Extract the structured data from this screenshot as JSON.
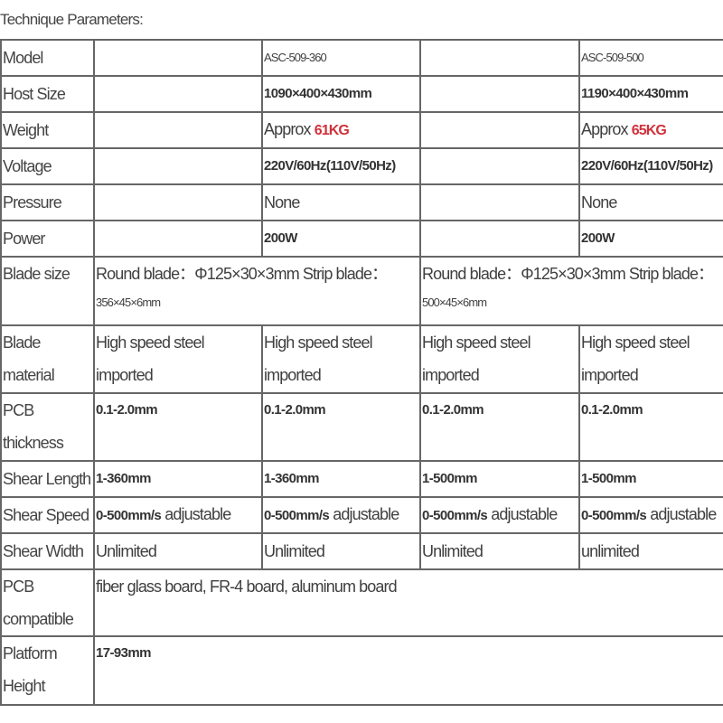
{
  "title": "Technique Parameters:",
  "rows": {
    "model": {
      "label": "Model",
      "a": "ASC-509-360",
      "b": "ASC-509-500"
    },
    "host_size": {
      "label": "Host Size",
      "a": "1090×400×430mm",
      "b": "1190×400×430mm"
    },
    "weight": {
      "label": "Weight",
      "prefix": "Approx ",
      "a": "61KG",
      "b": "65KG",
      "highlight_color": "#d0313a"
    },
    "voltage": {
      "label": "Voltage",
      "a": "220V/60Hz(110V/50Hz)",
      "b": "220V/60Hz(110V/50Hz)"
    },
    "pressure": {
      "label": "Pressure",
      "a": "None",
      "b": "None"
    },
    "power": {
      "label": "Power",
      "a": "200W",
      "b": "200W"
    },
    "blade_size": {
      "label": "Blade size",
      "a_line1": "Round blade：Φ125×30×3mm Strip blade：",
      "a_line2": "356×45×6mm",
      "b_line1": "Round blade：Φ125×30×3mm Strip blade：",
      "b_line2": "500×45×6mm"
    },
    "blade_material": {
      "label_1": "Blade",
      "label_2": "material",
      "values": [
        "High speed steel imported",
        "High speed steel imported",
        "High speed steel imported",
        "High speed steel imported"
      ]
    },
    "pcb_thickness": {
      "label_1": "PCB",
      "label_2": "thickness",
      "values": [
        "0.1-2.0mm",
        "0.1-2.0mm",
        "0.1-2.0mm",
        "0.1-2.0mm"
      ]
    },
    "shear_length": {
      "label": "Shear Length",
      "values": [
        "1-360mm",
        "1-360mm",
        "1-500mm",
        "1-500mm"
      ]
    },
    "shear_speed": {
      "label": "Shear Speed",
      "speed": "0-500mm/s",
      "suffix": " adjustable"
    },
    "shear_width": {
      "label": "Shear Width",
      "values": [
        "Unlimited",
        "Unlimited",
        "Unlimited",
        "unlimited"
      ]
    },
    "pcb_compatible": {
      "label_1": "PCB",
      "label_2": "compatible",
      "value": "fiber glass board, FR-4 board, aluminum board"
    },
    "platform_height": {
      "label_1": "Platform",
      "label_2": "Height",
      "value": "17-93mm"
    }
  }
}
